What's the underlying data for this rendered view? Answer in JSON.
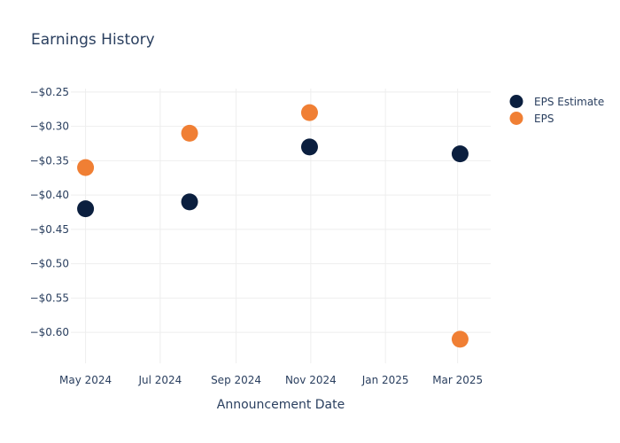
{
  "chart_data": {
    "type": "scatter",
    "title": "Earnings History",
    "xlabel": "Announcement Date",
    "ylabel": "",
    "x_ticks": [
      "May 2024",
      "Jul 2024",
      "Sep 2024",
      "Nov 2024",
      "Jan 2025",
      "Mar 2025"
    ],
    "y_ticks": [
      "−$0.25",
      "−$0.30",
      "−$0.35",
      "−$0.40",
      "−$0.45",
      "−$0.50",
      "−$0.55",
      "−$0.60"
    ],
    "xlim": [
      "2024-04-19",
      "2025-03-28"
    ],
    "ylim": [
      -0.645,
      -0.245
    ],
    "x": [
      "2024-05-01",
      "2024-07-25",
      "2024-10-31",
      "2025-03-03"
    ],
    "series": [
      {
        "name": "EPS Estimate",
        "color": "#0b1f3f",
        "values": [
          -0.42,
          -0.41,
          -0.33,
          -0.34
        ]
      },
      {
        "name": "EPS",
        "color": "#f07f34",
        "values": [
          -0.36,
          -0.31,
          -0.28,
          -0.61
        ]
      }
    ],
    "grid": true,
    "legend": "top-right"
  }
}
